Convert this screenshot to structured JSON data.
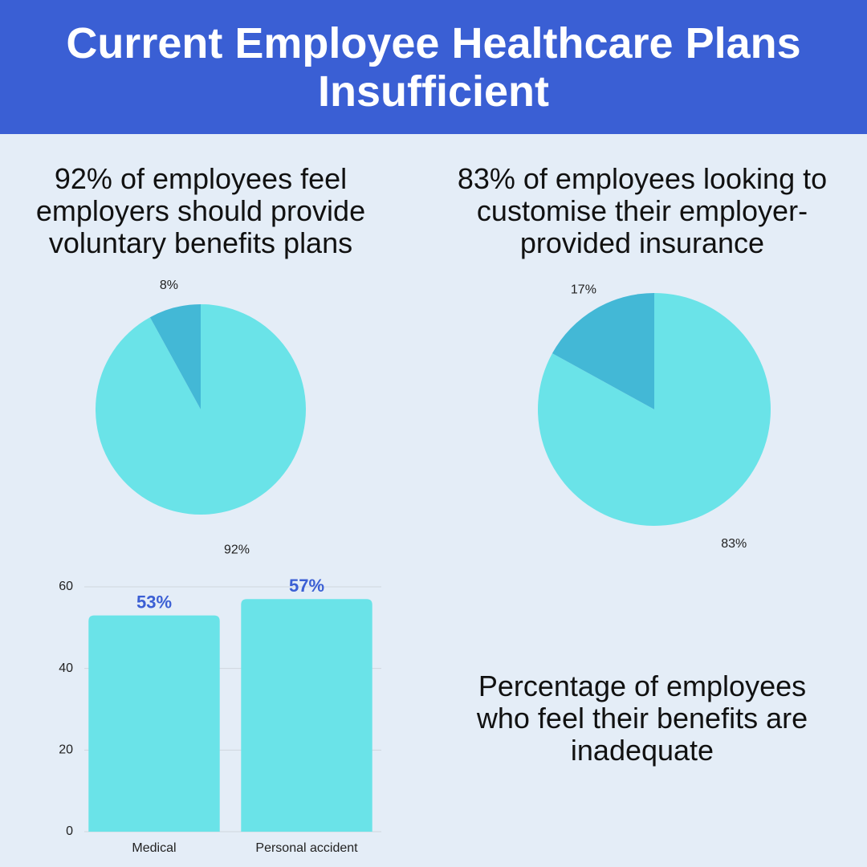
{
  "title": "Current Employee Healthcare Plans Insufficient",
  "chart_data": [
    {
      "type": "pie",
      "title": "92% of employees feel employers should provide voluntary benefits plans",
      "values": [
        92,
        8
      ],
      "value_labels": [
        "92%",
        "8%"
      ],
      "colors": [
        "#6ae3e8",
        "#43b8d6"
      ]
    },
    {
      "type": "pie",
      "title": "83% of employees looking to customise their employer-provided insurance",
      "values": [
        83,
        17
      ],
      "value_labels": [
        "83%",
        "17%"
      ],
      "colors": [
        "#6ae3e8",
        "#43b8d6"
      ]
    },
    {
      "type": "bar",
      "title": "Percentage of employees who feel their benefits are inadequate",
      "categories": [
        "Medical",
        "Personal accident"
      ],
      "values": [
        53,
        57
      ],
      "value_labels": [
        "53%",
        "57%"
      ],
      "color": "#6ae3e8",
      "label_color": "#3b5fd4",
      "ylim": [
        0,
        60
      ],
      "yticks": [
        0,
        20,
        40,
        60
      ],
      "grid": true
    }
  ]
}
